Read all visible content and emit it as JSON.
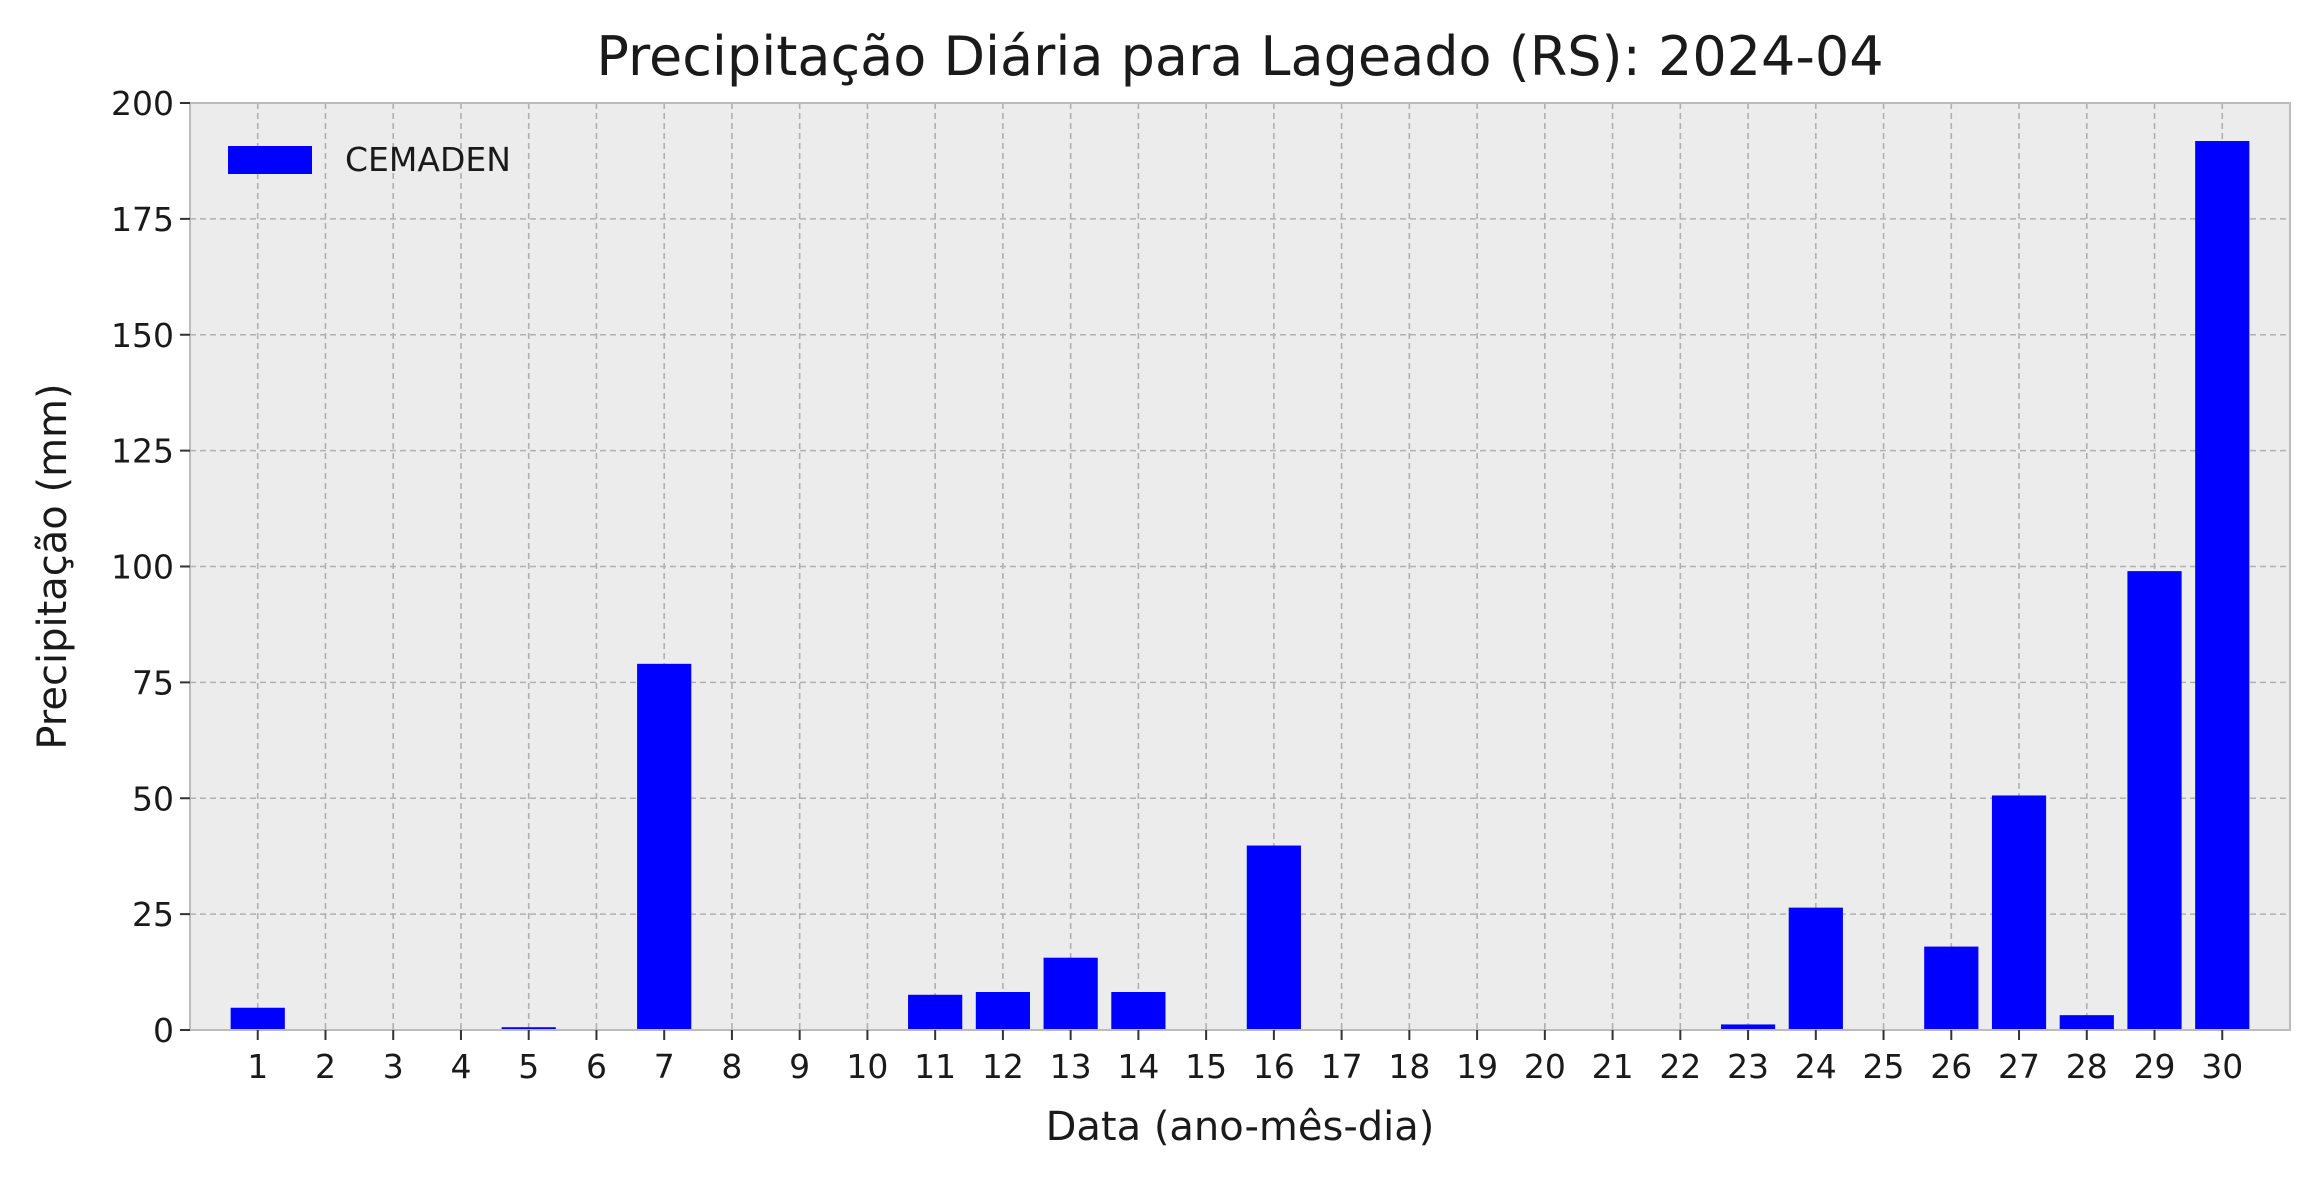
{
  "chart_data": {
    "type": "bar",
    "title": "Precipitação Diária para Lageado (RS): 2024-04",
    "xlabel": "Data (ano-mês-dia)",
    "ylabel": "Precipitação (mm)",
    "ylim": [
      0,
      200
    ],
    "yticks": [
      0,
      25,
      50,
      75,
      100,
      125,
      150,
      175,
      200
    ],
    "grid": true,
    "legend_position": "top-left",
    "categories": [
      "1",
      "2",
      "3",
      "4",
      "5",
      "6",
      "7",
      "8",
      "9",
      "10",
      "11",
      "12",
      "13",
      "14",
      "15",
      "16",
      "17",
      "18",
      "19",
      "20",
      "21",
      "22",
      "23",
      "24",
      "25",
      "26",
      "27",
      "28",
      "29",
      "30"
    ],
    "series": [
      {
        "name": "CEMADEN",
        "color": "#0000ff",
        "values": [
          4.8,
          0,
          0,
          0,
          0.6,
          0,
          79,
          0,
          0,
          0,
          7.6,
          8.2,
          15.6,
          8.2,
          0,
          39.8,
          0,
          0,
          0,
          0,
          0,
          0,
          1.2,
          26.4,
          0,
          18,
          50.6,
          3.2,
          99,
          191.8
        ]
      }
    ],
    "colors": {
      "plot_bg": "#ececec",
      "grid": "#b0b0b0",
      "frame": "#bcbcbc"
    }
  }
}
